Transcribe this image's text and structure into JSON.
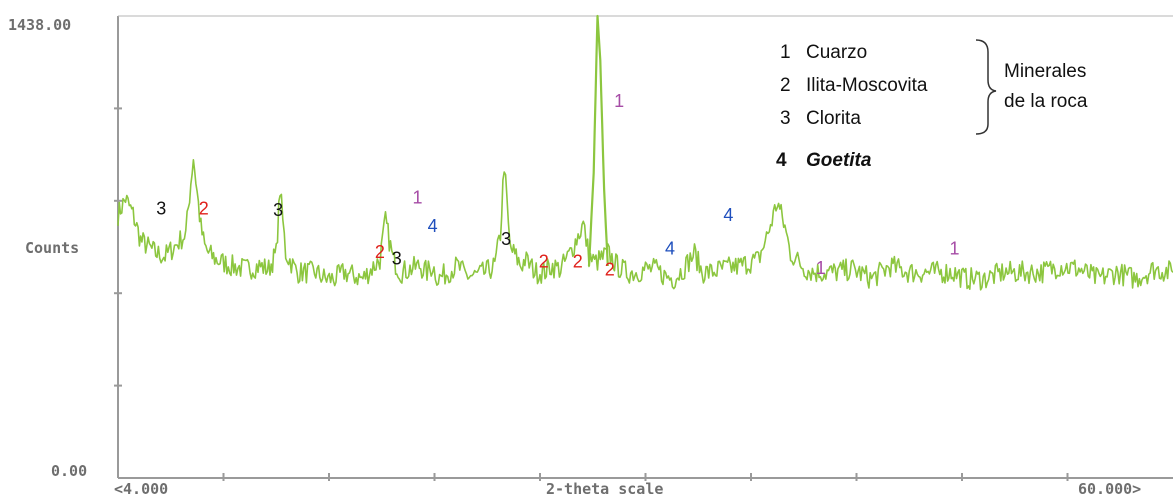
{
  "chart_data": {
    "type": "line",
    "title": "",
    "ylabel": "Counts",
    "xlabel": "2-theta scale",
    "ylim": [
      0,
      1438
    ],
    "xlim": [
      4,
      60
    ],
    "y_tick_labels": {
      "top": "1438.00",
      "bottom": "0.00"
    },
    "x_tick_labels": {
      "left": "<4.000",
      "right": "60.000>"
    },
    "series_color": "#8cc63f",
    "series": [
      {
        "x": [
          4.0,
          4.4,
          4.8,
          5.2,
          5.6,
          6.0,
          6.5,
          7.0,
          7.6,
          8.0,
          8.4,
          8.6,
          8.8,
          9.2,
          10.0,
          10.8,
          11.5,
          12.0,
          12.4,
          12.6,
          12.9,
          13.5,
          14.5,
          15.0,
          15.5,
          16.0,
          16.5,
          17.0,
          17.9,
          18.2,
          18.6,
          19.0,
          19.5,
          20.0,
          20.4,
          20.7,
          21.0,
          21.5,
          22.0,
          22.5,
          23.0,
          23.5,
          24.0,
          24.3,
          24.5,
          24.8,
          25.2,
          25.4,
          25.6,
          25.9,
          26.2,
          26.6,
          27.0,
          27.5,
          28.0,
          28.7,
          29.0,
          29.3,
          29.6,
          30.0,
          30.5,
          31.0,
          31.5,
          32.0,
          32.5,
          33.0,
          33.5,
          34.0,
          34.6,
          35.0,
          35.5,
          36.0,
          37.0,
          38.0,
          38.5,
          39.0,
          39.4,
          39.7,
          40.0,
          40.5,
          41.0,
          41.5,
          42.0,
          43.0,
          44.0,
          45.0,
          46.0,
          47.0,
          47.9,
          48.3,
          49.0,
          50.0,
          51.0,
          52.0,
          53.0,
          54.0,
          55.0,
          56.0,
          57.0,
          58.0,
          59.0,
          60.0
        ],
        "y": [
          820,
          870,
          820,
          740,
          720,
          700,
          690,
          720,
          760,
          1000,
          780,
          720,
          700,
          680,
          660,
          650,
          660,
          650,
          700,
          900,
          700,
          640,
          640,
          620,
          620,
          640,
          630,
          620,
          680,
          800,
          680,
          640,
          650,
          660,
          640,
          660,
          620,
          640,
          660,
          630,
          630,
          640,
          660,
          760,
          980,
          720,
          680,
          660,
          680,
          660,
          640,
          640,
          660,
          650,
          700,
          790,
          690,
          670,
          680,
          700,
          660,
          640,
          640,
          650,
          650,
          630,
          620,
          650,
          700,
          640,
          640,
          650,
          660,
          680,
          760,
          860,
          780,
          700,
          680,
          650,
          640,
          640,
          640,
          650,
          620,
          660,
          640,
          640,
          640,
          640,
          620,
          620,
          640,
          640,
          640,
          660,
          650,
          620,
          640,
          620,
          650,
          640
        ]
      },
      {
        "x": [
          29.0,
          29.25,
          29.45,
          29.6,
          29.8,
          30.0
        ],
        "y": [
          660,
          950,
          1438,
          1300,
          900,
          660
        ]
      }
    ],
    "annotations": [
      {
        "text": "3",
        "x": 6.3,
        "y": 820,
        "color": "#111111"
      },
      {
        "text": "2",
        "x": 8.55,
        "y": 820,
        "color": "#e0201b"
      },
      {
        "text": "3",
        "x": 12.5,
        "y": 815,
        "color": "#111111"
      },
      {
        "text": "2",
        "x": 17.9,
        "y": 685,
        "color": "#e0201b"
      },
      {
        "text": "3",
        "x": 18.8,
        "y": 665,
        "color": "#111111"
      },
      {
        "text": "1",
        "x": 19.9,
        "y": 855,
        "color": "#a64ca6"
      },
      {
        "text": "4",
        "x": 20.7,
        "y": 765,
        "color": "#1f4fbd"
      },
      {
        "text": "3",
        "x": 24.6,
        "y": 725,
        "color": "#111111"
      },
      {
        "text": "1",
        "x": 30.6,
        "y": 1155,
        "color": "#a64ca6"
      },
      {
        "text": "2",
        "x": 26.6,
        "y": 655,
        "color": "#e0201b"
      },
      {
        "text": "2",
        "x": 28.4,
        "y": 655,
        "color": "#e0201b"
      },
      {
        "text": "2",
        "x": 30.1,
        "y": 630,
        "color": "#e0201b"
      },
      {
        "text": "4",
        "x": 33.3,
        "y": 695,
        "color": "#1f4fbd"
      },
      {
        "text": "4",
        "x": 36.4,
        "y": 800,
        "color": "#1f4fbd"
      },
      {
        "text": "1",
        "x": 41.3,
        "y": 635,
        "color": "#a64ca6"
      },
      {
        "text": "1",
        "x": 48.4,
        "y": 695,
        "color": "#a64ca6"
      }
    ],
    "legend": {
      "items": [
        {
          "num": "1",
          "label": "Cuarzo",
          "color": "#a64ca6"
        },
        {
          "num": "2",
          "label": "Ilita-Moscovita",
          "color": "#e0201b"
        },
        {
          "num": "3",
          "label": "Clorita",
          "color": "#111111"
        }
      ],
      "group_label_1": "Minerales",
      "group_label_2": "de la roca",
      "extra": {
        "num": "4",
        "label": "Goetita",
        "color": "#1f4fbd"
      }
    }
  }
}
